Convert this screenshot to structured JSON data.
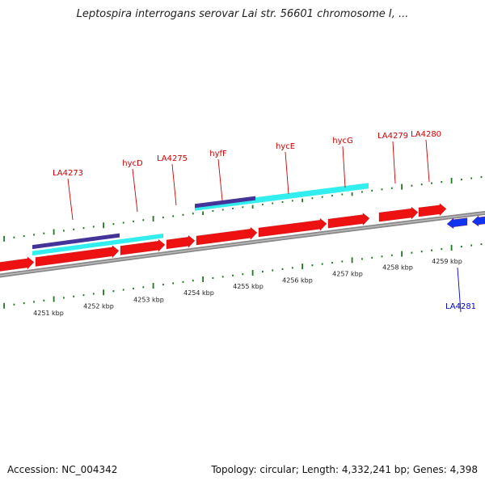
{
  "title": "Leptospira interrogans serovar Lai str. 56601 chromosome I, ...",
  "footer": {
    "accession": "Accession: NC_004342",
    "summary": "Topology: circular; Length: 4,332,241 bp; Genes: 4,398"
  },
  "colors": {
    "forward_gene": "#ee1111",
    "reverse_gene": "#1133ee",
    "feature_cyan": "#33eeee",
    "feature_purple": "#443399",
    "backbone": "#888888",
    "tick": "#227722",
    "label_forward": "#cc0000",
    "label_reverse": "#0000cc"
  },
  "genes": [
    {
      "id": "g1",
      "name": "LA4273",
      "strand": "forward",
      "labeled": true
    },
    {
      "id": "g2",
      "name": "hycD",
      "strand": "forward",
      "labeled": true
    },
    {
      "id": "g3",
      "name": "LA4275",
      "strand": "forward",
      "labeled": true
    },
    {
      "id": "g4",
      "name": "hyfF",
      "strand": "forward",
      "labeled": true
    },
    {
      "id": "g5",
      "name": "hycE",
      "strand": "forward",
      "labeled": true
    },
    {
      "id": "g6",
      "name": "hycG",
      "strand": "forward",
      "labeled": true
    },
    {
      "id": "g7",
      "name": "LA4279",
      "strand": "forward",
      "labeled": true
    },
    {
      "id": "g8",
      "name": "LA4280",
      "strand": "forward",
      "labeled": true
    },
    {
      "id": "g9",
      "name": "LA4281",
      "strand": "reverse",
      "labeled": true
    },
    {
      "id": "g0",
      "name": "",
      "strand": "forward",
      "labeled": false
    },
    {
      "id": "g10",
      "name": "",
      "strand": "reverse",
      "labeled": false
    }
  ],
  "scale": {
    "unit": "kbp",
    "labels": [
      "4251 kbp",
      "4252 kbp",
      "4253 kbp",
      "4254 kbp",
      "4255 kbp",
      "4256 kbp",
      "4257 kbp",
      "4258 kbp",
      "4259 kbp"
    ]
  }
}
